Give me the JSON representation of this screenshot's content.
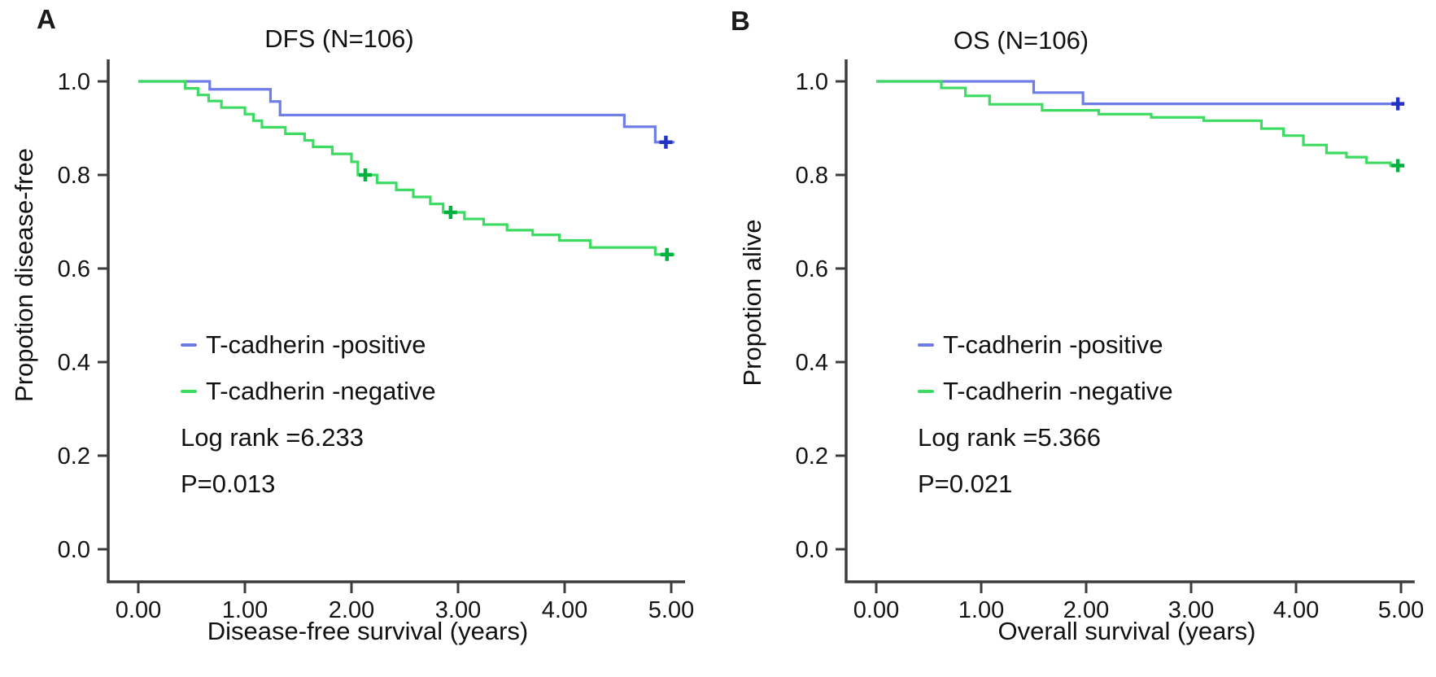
{
  "chart_data": [
    {
      "type": "line",
      "subtype": "kaplan-meier-step",
      "panel_label": "A",
      "title": "DFS (N=106)",
      "n": 106,
      "xlabel": "Disease-free survival (years)",
      "ylabel": "Propotion disease-free",
      "xlim": [
        0,
        5.15
      ],
      "ylim": [
        0,
        1.0
      ],
      "grid": false,
      "legend_position": "inside-lower-left",
      "x_ticks": [
        "0.00",
        "1.00",
        "2.00",
        "3.00",
        "4.00",
        "5.00"
      ],
      "x_tick_values": [
        0,
        1,
        2,
        3,
        4,
        5
      ],
      "y_ticks": [
        "1.0",
        "0.8",
        "0.6",
        "0.4",
        "0.2",
        "0.0"
      ],
      "y_tick_values": [
        1.0,
        0.8,
        0.6,
        0.4,
        0.2,
        0.0
      ],
      "stats": {
        "log_rank": "Log rank =6.233",
        "p_value": "P=0.013"
      },
      "series": [
        {
          "name": "T-cadherin -positive",
          "color": "#6f7de6",
          "censor_color": "#2433c4",
          "steps": [
            [
              0,
              1.0
            ],
            [
              0.67,
              0.983
            ],
            [
              1.24,
              0.957
            ],
            [
              1.33,
              0.928
            ],
            [
              4.56,
              0.903
            ],
            [
              4.85,
              0.87
            ]
          ],
          "censors": [
            [
              4.95,
              0.87
            ]
          ]
        },
        {
          "name": "T-cadherin -negative",
          "color": "#3edb63",
          "censor_color": "#00b140",
          "steps": [
            [
              0,
              1.0
            ],
            [
              0.44,
              0.985
            ],
            [
              0.56,
              0.971
            ],
            [
              0.66,
              0.958
            ],
            [
              0.78,
              0.944
            ],
            [
              1.0,
              0.93
            ],
            [
              1.08,
              0.916
            ],
            [
              1.16,
              0.902
            ],
            [
              1.38,
              0.888
            ],
            [
              1.56,
              0.874
            ],
            [
              1.64,
              0.86
            ],
            [
              1.82,
              0.845
            ],
            [
              2.0,
              0.828
            ],
            [
              2.06,
              0.8
            ],
            [
              2.24,
              0.783
            ],
            [
              2.42,
              0.768
            ],
            [
              2.58,
              0.753
            ],
            [
              2.74,
              0.738
            ],
            [
              2.86,
              0.72
            ],
            [
              3.06,
              0.706
            ],
            [
              3.24,
              0.694
            ],
            [
              3.46,
              0.682
            ],
            [
              3.7,
              0.672
            ],
            [
              3.95,
              0.66
            ],
            [
              4.24,
              0.645
            ],
            [
              4.85,
              0.63
            ]
          ],
          "censors": [
            [
              2.13,
              0.8
            ],
            [
              2.93,
              0.72
            ],
            [
              4.96,
              0.63
            ]
          ]
        }
      ]
    },
    {
      "type": "line",
      "subtype": "kaplan-meier-step",
      "panel_label": "B",
      "title": "OS (N=106)",
      "n": 106,
      "xlabel": "Overall survival (years)",
      "ylabel": "Propotion alive",
      "xlim": [
        0,
        5.15
      ],
      "ylim": [
        0,
        1.0
      ],
      "grid": false,
      "legend_position": "inside-lower-left",
      "x_ticks": [
        "0.00",
        "1.00",
        "2.00",
        "3.00",
        "4.00",
        "5.00"
      ],
      "x_tick_values": [
        0,
        1,
        2,
        3,
        4,
        5
      ],
      "y_ticks": [
        "1.0",
        "0.8",
        "0.6",
        "0.4",
        "0.2",
        "0.0"
      ],
      "y_tick_values": [
        1.0,
        0.8,
        0.6,
        0.4,
        0.2,
        0.0
      ],
      "stats": {
        "log_rank": "Log rank =5.366",
        "p_value": "P=0.021"
      },
      "series": [
        {
          "name": "T-cadherin -positive",
          "color": "#6f7de6",
          "censor_color": "#2433c4",
          "steps": [
            [
              0,
              1.0
            ],
            [
              1.5,
              0.976
            ],
            [
              1.97,
              0.952
            ]
          ],
          "censors": [
            [
              4.97,
              0.952
            ]
          ]
        },
        {
          "name": "T-cadherin -negative",
          "color": "#3edb63",
          "censor_color": "#00b140",
          "steps": [
            [
              0,
              1.0
            ],
            [
              0.62,
              0.986
            ],
            [
              0.85,
              0.969
            ],
            [
              1.08,
              0.951
            ],
            [
              1.58,
              0.938
            ],
            [
              2.12,
              0.93
            ],
            [
              2.62,
              0.923
            ],
            [
              3.12,
              0.916
            ],
            [
              3.67,
              0.899
            ],
            [
              3.88,
              0.884
            ],
            [
              4.07,
              0.864
            ],
            [
              4.29,
              0.847
            ],
            [
              4.48,
              0.838
            ],
            [
              4.67,
              0.826
            ],
            [
              4.9,
              0.82
            ]
          ],
          "censors": [
            [
              4.97,
              0.82
            ]
          ]
        }
      ]
    }
  ]
}
